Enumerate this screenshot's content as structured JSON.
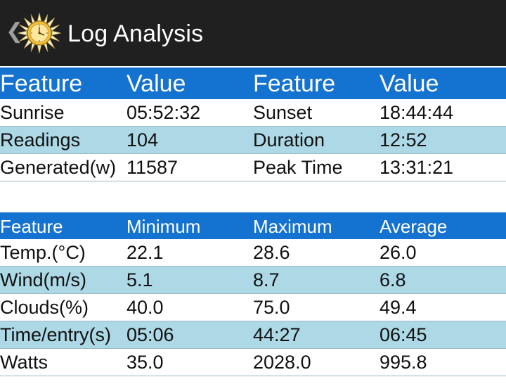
{
  "app": {
    "title": "Log Analysis",
    "back_glyph": "❮",
    "logo_icon": "sun-clock-icon",
    "colors": {
      "appbar": "#202020",
      "header": "#1472d0",
      "row_alt": "#add8e6"
    }
  },
  "summary": {
    "headers": [
      "Feature",
      "Value",
      "Feature",
      "Value"
    ],
    "rows": [
      [
        "Sunrise",
        "05:52:32",
        "Sunset",
        "18:44:44"
      ],
      [
        "Readings",
        "104",
        "Duration",
        "12:52"
      ],
      [
        "Generated(w)",
        "11587",
        "Peak Time",
        "13:31:21"
      ]
    ]
  },
  "stats": {
    "headers": [
      "Feature",
      "Minimum",
      "Maximum",
      "Average"
    ],
    "rows": [
      [
        "Temp.(°C)",
        "22.1",
        "28.6",
        "26.0"
      ],
      [
        "Wind(m/s)",
        "5.1",
        "8.7",
        "6.8"
      ],
      [
        "Clouds(%)",
        "40.0",
        "75.0",
        "49.4"
      ],
      [
        "Time/entry(s)",
        "05:06",
        "44:27",
        "06:45"
      ],
      [
        "Watts",
        "35.0",
        "2028.0",
        "995.8"
      ]
    ]
  }
}
